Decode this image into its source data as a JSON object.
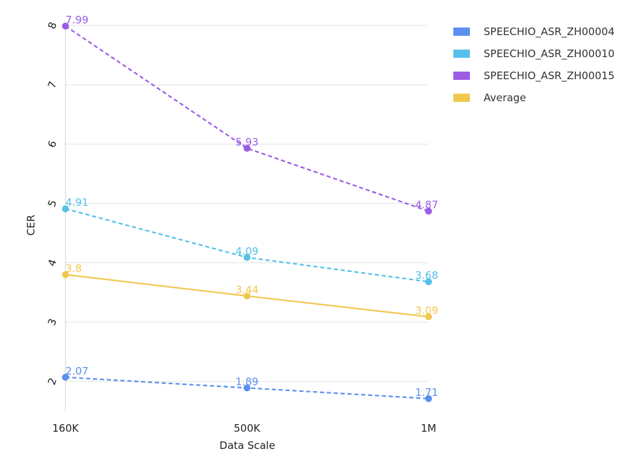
{
  "chart_data": {
    "type": "line",
    "title": "",
    "xlabel": "Data Scale",
    "ylabel": "CER",
    "categories": [
      "160K",
      "500K",
      "1M"
    ],
    "ylim": [
      1.5,
      8
    ],
    "yticks": [
      2,
      3,
      4,
      5,
      6,
      7,
      8
    ],
    "grid": true,
    "legend_position": "top-right",
    "series": [
      {
        "name": "SPEECHIO_ASR_ZH00004",
        "values": [
          2.07,
          1.89,
          1.71
        ],
        "labels": [
          "2.07",
          "1.89",
          "1.71"
        ],
        "color": "#5b8ff0",
        "dashed": true
      },
      {
        "name": "SPEECHIO_ASR_ZH00010",
        "values": [
          4.91,
          4.09,
          3.68
        ],
        "labels": [
          "4.91",
          "4.09",
          "3.68"
        ],
        "color": "#56c1e8",
        "dashed": true
      },
      {
        "name": "SPEECHIO_ASR_ZH00015",
        "values": [
          7.99,
          5.93,
          4.87
        ],
        "labels": [
          "7.99",
          "5.93",
          "4.87"
        ],
        "color": "#9b5de5",
        "dashed": true
      },
      {
        "name": "Average",
        "values": [
          3.8,
          3.44,
          3.09
        ],
        "labels": [
          "3.8",
          "3.44",
          "3.09"
        ],
        "color": "#f0c850",
        "dashed": false
      }
    ]
  }
}
